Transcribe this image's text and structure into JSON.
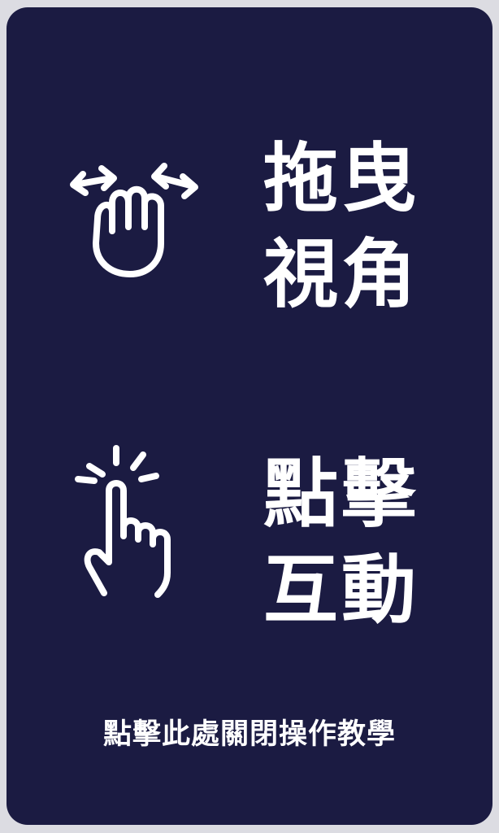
{
  "tutorial": {
    "drag": {
      "icon": "drag-hand-icon",
      "line1": "拖曳",
      "line2": "視角"
    },
    "tap": {
      "icon": "tap-finger-icon",
      "line1": "點擊",
      "line2": "互動"
    },
    "close_hint": "點擊此處關閉操作教學"
  },
  "colors": {
    "page_background": "#dcdce2",
    "panel_background": "#1b1b42",
    "foreground": "#ffffff"
  }
}
